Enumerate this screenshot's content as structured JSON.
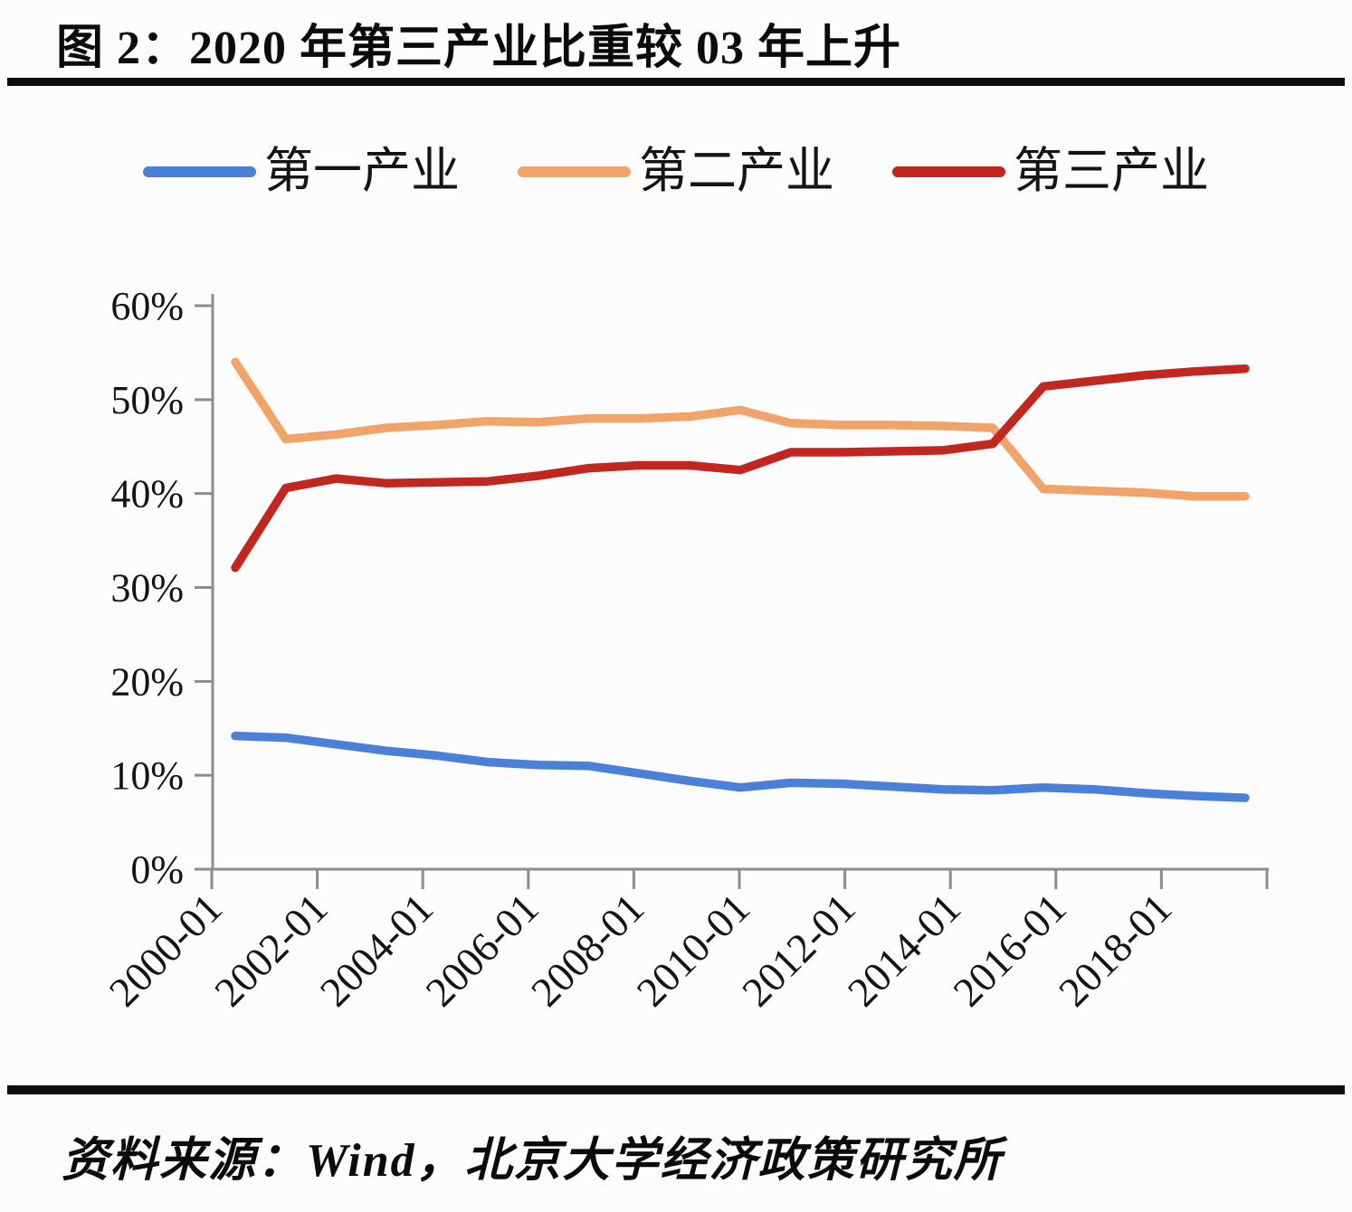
{
  "title": "图 2：2020 年第三产业比重较 03 年上升",
  "source_note": "资料来源：Wind，北京大学经济政策研究所",
  "colors": {
    "primary_line": "#4B80D9",
    "secondary_line": "#F0A46A",
    "tertiary_line": "#C1271E",
    "axis": "#8c8c8c",
    "text": "#141414",
    "divider": "#0d0d0d"
  },
  "legend": {
    "position": "top",
    "items": [
      {
        "label": "第一产业",
        "color": "#4B80D9"
      },
      {
        "label": "第二产业",
        "color": "#F0A46A"
      },
      {
        "label": "第三产业",
        "color": "#C1271E"
      }
    ]
  },
  "chart_data": {
    "type": "line",
    "title": "图 2：2020 年第三产业比重较 03 年上升",
    "xlabel": "",
    "ylabel": "",
    "x": [
      2000,
      2001,
      2002,
      2003,
      2004,
      2005,
      2006,
      2007,
      2008,
      2009,
      2010,
      2011,
      2012,
      2013,
      2014,
      2015,
      2016,
      2017,
      2018,
      2019,
      2020
    ],
    "x_tick_labels": [
      "2000-01",
      "2002-01",
      "2004-01",
      "2006-01",
      "2008-01",
      "2010-01",
      "2012-01",
      "2014-01",
      "2016-01",
      "2018-01"
    ],
    "y_tick_labels": [
      "0%",
      "10%",
      "20%",
      "30%",
      "40%",
      "50%",
      "60%"
    ],
    "ylim": [
      0,
      60
    ],
    "grid": false,
    "legend_position": "top",
    "series": [
      {
        "name": "第一产业",
        "key": "primary",
        "color": "#4B80D9",
        "values": [
          14.2,
          14.0,
          13.3,
          12.6,
          12.1,
          11.4,
          11.1,
          11.0,
          10.2,
          9.4,
          8.7,
          9.2,
          9.1,
          8.8,
          8.5,
          8.4,
          8.7,
          8.5,
          8.1,
          7.8,
          7.6
        ]
      },
      {
        "name": "第二产业",
        "key": "secondary",
        "color": "#F0A46A",
        "values": [
          54.0,
          45.8,
          46.3,
          47.0,
          47.3,
          47.7,
          47.6,
          48.0,
          48.0,
          48.2,
          48.9,
          47.5,
          47.3,
          47.3,
          47.2,
          47.0,
          40.5,
          40.3,
          40.1,
          39.7,
          39.7
        ]
      },
      {
        "name": "第三产业",
        "key": "tertiary",
        "color": "#C1271E",
        "values": [
          32.1,
          40.6,
          41.6,
          41.1,
          41.2,
          41.3,
          41.9,
          42.7,
          43.0,
          43.0,
          42.5,
          44.4,
          44.4,
          44.5,
          44.6,
          45.3,
          51.4,
          52.0,
          52.6,
          53.0,
          53.3
        ]
      }
    ]
  }
}
